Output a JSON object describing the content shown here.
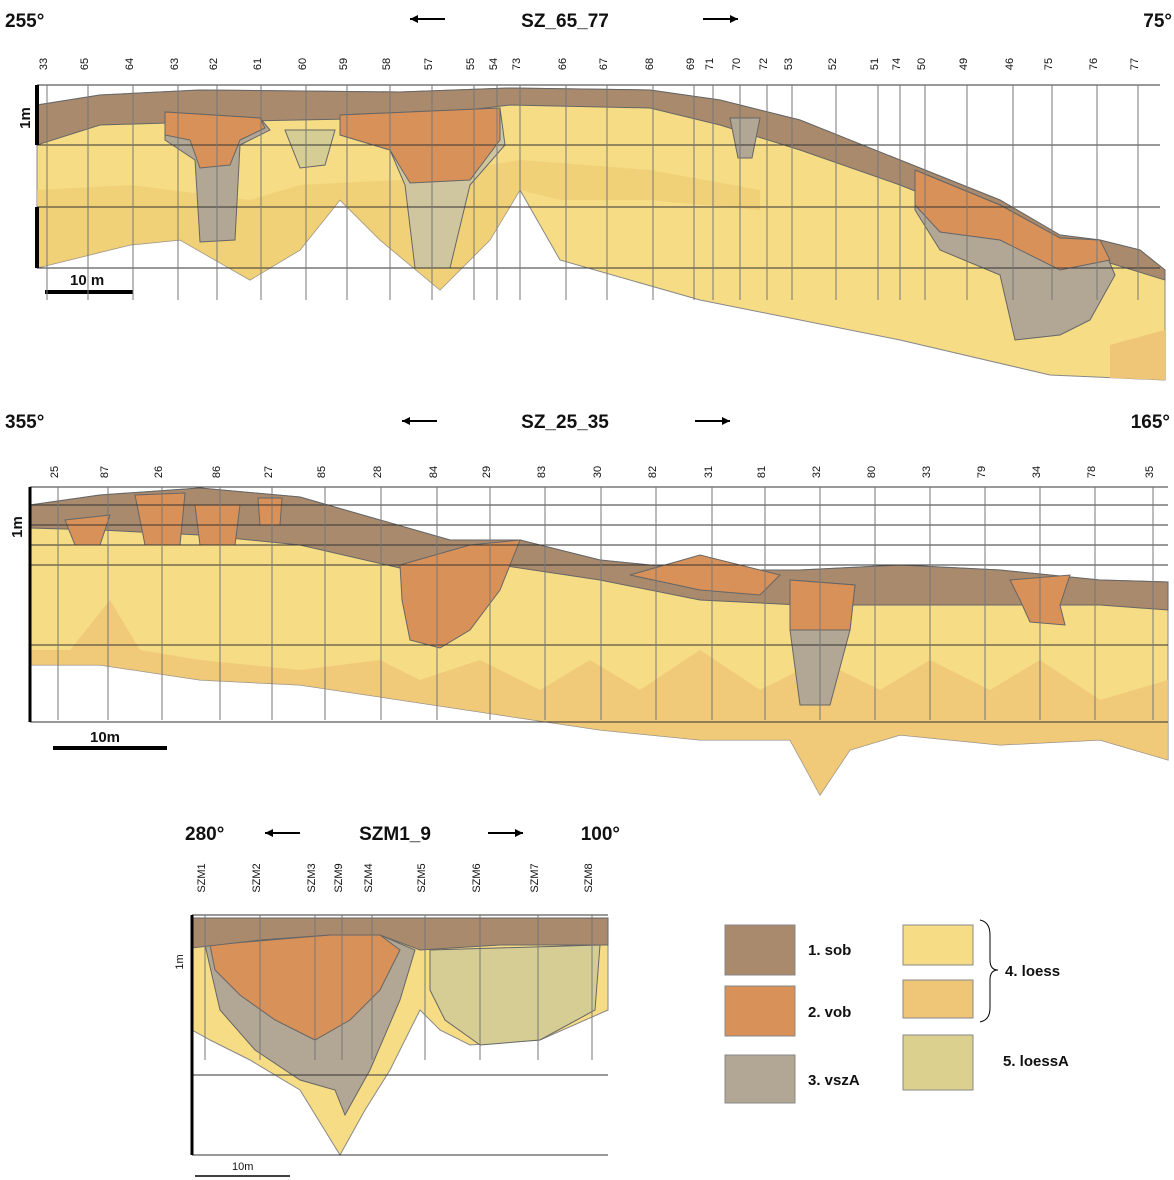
{
  "sections": [
    {
      "left_bearing": "255°",
      "title": "SZ_65_77",
      "right_bearing": "75°",
      "depth_label": "1m",
      "scale_label": "10 m",
      "boreholes": [
        "33",
        "65",
        "64",
        "63",
        "62",
        "61",
        "60",
        "59",
        "58",
        "57",
        "55",
        "54",
        "73",
        "66",
        "67",
        "68",
        "69",
        "71",
        "70",
        "72",
        "53",
        "52",
        "51",
        "74",
        "50",
        "49",
        "46",
        "75",
        "76",
        "77"
      ]
    },
    {
      "left_bearing": "355°",
      "title": "SZ_25_35",
      "right_bearing": "165°",
      "depth_label": "1m",
      "scale_label": "10m",
      "boreholes": [
        "25",
        "87",
        "26",
        "86",
        "27",
        "85",
        "28",
        "84",
        "29",
        "83",
        "30",
        "82",
        "31",
        "81",
        "32",
        "80",
        "33",
        "79",
        "34",
        "78",
        "35"
      ]
    },
    {
      "left_bearing": "280°",
      "title": "SZM1_9",
      "right_bearing": "100°",
      "depth_label": "1m",
      "scale_label": "10m",
      "boreholes": [
        "SZM1",
        "SZM2",
        "SZM3",
        "SZM9",
        "SZM4",
        "SZM5",
        "SZM6",
        "SZM7",
        "SZM8"
      ]
    }
  ],
  "legend": [
    "1. sob",
    "2. vob",
    "3. vszA",
    "4. loess",
    "5. loessA"
  ]
}
